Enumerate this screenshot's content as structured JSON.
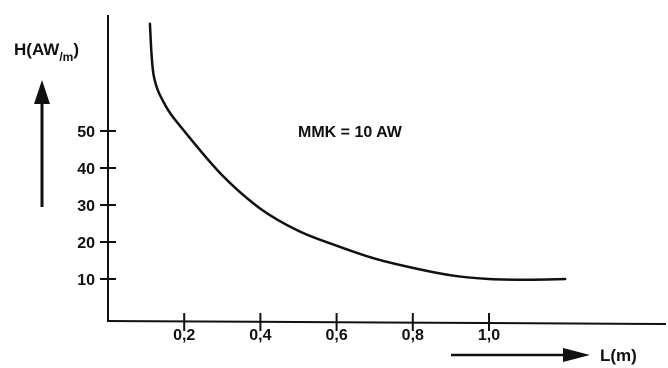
{
  "chart_data": {
    "type": "line",
    "title": "",
    "ylabel": {
      "main": "H(AW",
      "sub": "/m",
      "close": ")"
    },
    "xlabel": "L(m)",
    "annotation": "MMK = 10 AW",
    "x_ticks": [
      "0,2",
      "0,4",
      "0,6",
      "0,8",
      "1,0"
    ],
    "y_ticks": [
      "10",
      "20",
      "30",
      "40",
      "50"
    ],
    "xlim": [
      0,
      1.25
    ],
    "ylim": [
      0,
      65
    ],
    "grid": false,
    "series": [
      {
        "x": [
          0.11,
          0.12,
          0.15,
          0.2,
          0.3,
          0.4,
          0.5,
          0.6,
          0.7,
          0.8,
          0.9,
          1.0,
          1.1,
          1.2
        ],
        "y": [
          79,
          65,
          57,
          50,
          38,
          29,
          23,
          19,
          15.5,
          13,
          11,
          10,
          9.8,
          10
        ]
      }
    ],
    "colors": {
      "ink": "#111111",
      "background": "#ffffff"
    }
  }
}
